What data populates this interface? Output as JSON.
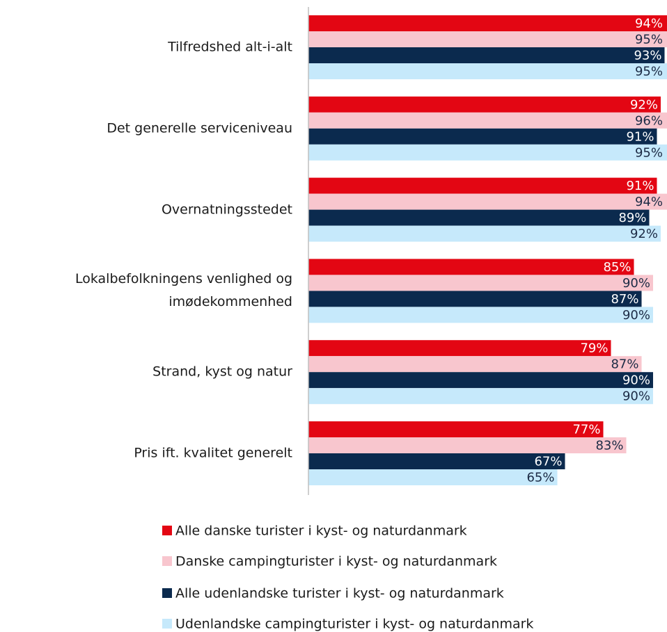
{
  "chart_data": {
    "type": "bar",
    "orientation": "horizontal",
    "categories": [
      "Tilfredshed alt-i-alt",
      "Det generelle serviceniveau",
      "Overnatningsstedet",
      "Lokalbefolkningens venlighed og\nimødekommenhed",
      "Strand, kyst og natur",
      "Pris ift. kvalitet generelt"
    ],
    "series": [
      {
        "name": "Alle danske turister i kyst- og naturdanmark",
        "color": "#e30613",
        "values": [
          94,
          92,
          91,
          85,
          79,
          77
        ],
        "value_labels": [
          "94%",
          "92%",
          "91%",
          "85%",
          "79%",
          "77%"
        ]
      },
      {
        "name": "Danske campingturister i kyst- og naturdanmark",
        "color": "#f8c6ce",
        "values": [
          95,
          96,
          94,
          90,
          87,
          83
        ],
        "value_labels": [
          "95%",
          "96%",
          "94%",
          "90%",
          "87%",
          "83%"
        ]
      },
      {
        "name": "Alle udenlandske turister i kyst- og naturdanmark",
        "color": "#0b2a4e",
        "values": [
          93,
          91,
          89,
          87,
          90,
          67
        ],
        "value_labels": [
          "93%",
          "91%",
          "89%",
          "87%",
          "90%",
          "67%"
        ]
      },
      {
        "name": "Udenlandske campingturister i kyst- og naturdanmark",
        "color": "#c6e9fb",
        "values": [
          95,
          95,
          92,
          90,
          90,
          65
        ],
        "value_labels": [
          "95%",
          "95%",
          "92%",
          "90%",
          "90%",
          "65%"
        ]
      }
    ],
    "xlim": [
      0,
      100
    ],
    "legend": "bottom"
  }
}
